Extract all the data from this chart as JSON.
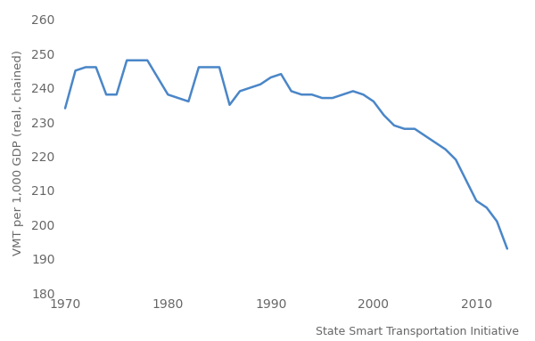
{
  "years": [
    1970,
    1971,
    1972,
    1973,
    1974,
    1975,
    1976,
    1977,
    1978,
    1979,
    1980,
    1981,
    1982,
    1983,
    1984,
    1985,
    1986,
    1987,
    1988,
    1989,
    1990,
    1991,
    1992,
    1993,
    1994,
    1995,
    1996,
    1997,
    1998,
    1999,
    2000,
    2001,
    2002,
    2003,
    2004,
    2005,
    2006,
    2007,
    2008,
    2009,
    2010,
    2011,
    2012,
    2013
  ],
  "values": [
    234,
    245,
    246,
    246,
    238,
    238,
    248,
    248,
    248,
    243,
    238,
    237,
    236,
    246,
    246,
    246,
    235,
    239,
    240,
    241,
    243,
    244,
    239,
    238,
    238,
    237,
    237,
    238,
    239,
    238,
    236,
    232,
    229,
    228,
    228,
    226,
    224,
    222,
    219,
    213,
    207,
    205,
    201,
    193
  ],
  "line_color": "#4a86c8",
  "line_width": 1.8,
  "ylabel": "VMT per 1,000 GDP (real, chained)",
  "attribution": "State Smart Transportation Initiative",
  "ylim": [
    180,
    262
  ],
  "xlim": [
    1969.5,
    2014.5
  ],
  "yticks": [
    180,
    190,
    200,
    210,
    220,
    230,
    240,
    250,
    260
  ],
  "xticks": [
    1970,
    1980,
    1990,
    2000,
    2010
  ],
  "background_color": "#ffffff",
  "font_color": "#666666",
  "attribution_fontsize": 9,
  "ylabel_fontsize": 9.5,
  "tick_fontsize": 10
}
